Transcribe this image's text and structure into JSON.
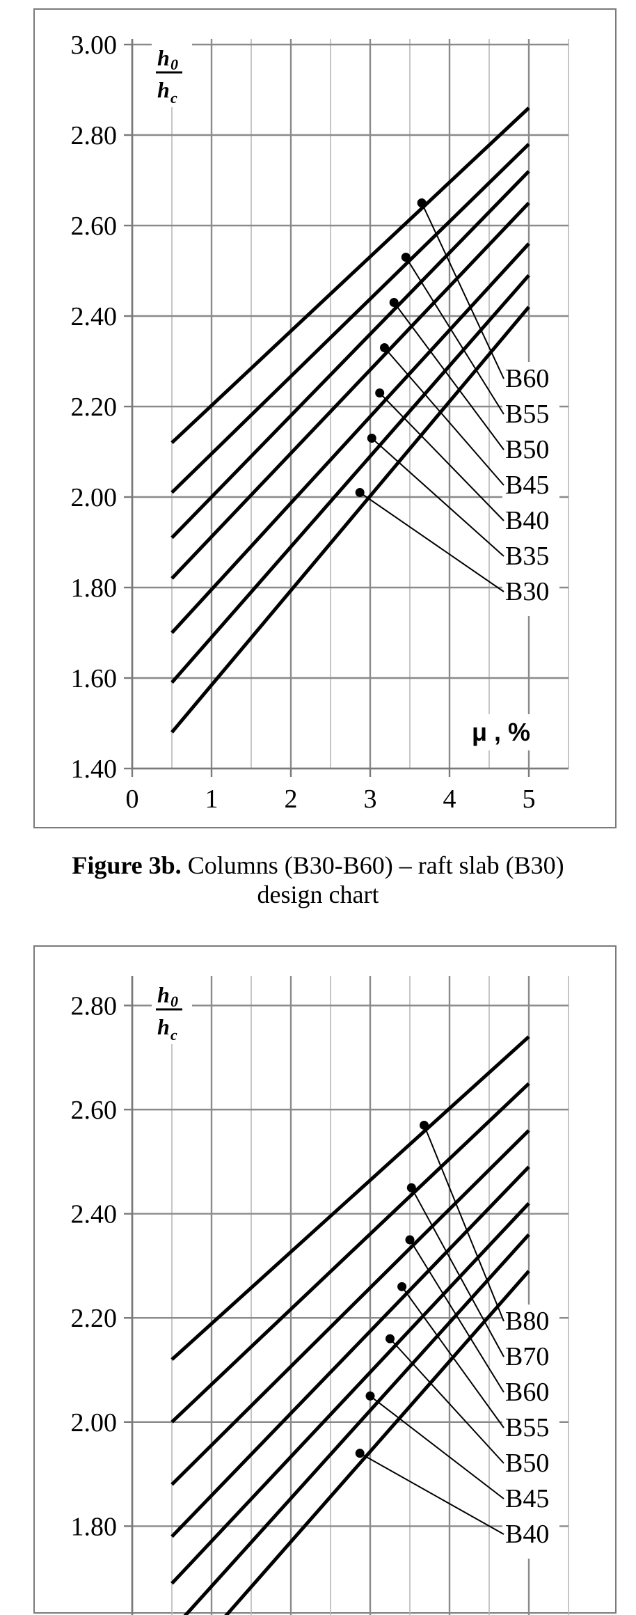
{
  "chart_data": [
    {
      "type": "line",
      "ylabel_num": "h",
      "ylabel_num_sub": "0",
      "ylabel_den": "h",
      "ylabel_den_sub": "c",
      "xlabel": "μ , %",
      "xlim": [
        0,
        5.5
      ],
      "ylim": [
        1.4,
        3.0
      ],
      "xticks": [
        "0",
        "1",
        "2",
        "3",
        "4",
        "5"
      ],
      "yticks": [
        "1.40",
        "1.60",
        "1.80",
        "2.00",
        "2.20",
        "2.40",
        "2.60",
        "2.80",
        "3.00"
      ],
      "grid": true,
      "series": [
        {
          "name": "B60",
          "x": [
            0.5,
            5
          ],
          "y": [
            2.12,
            2.86
          ],
          "marker": [
            3.65,
            2.65
          ]
        },
        {
          "name": "B55",
          "x": [
            0.5,
            5
          ],
          "y": [
            2.01,
            2.78
          ],
          "marker": [
            3.45,
            2.53
          ]
        },
        {
          "name": "B50",
          "x": [
            0.5,
            5
          ],
          "y": [
            1.91,
            2.72
          ],
          "marker": [
            3.3,
            2.43
          ]
        },
        {
          "name": "B45",
          "x": [
            0.5,
            5
          ],
          "y": [
            1.82,
            2.65
          ],
          "marker": [
            3.18,
            2.33
          ]
        },
        {
          "name": "B40",
          "x": [
            0.5,
            5
          ],
          "y": [
            1.7,
            2.56
          ],
          "marker": [
            3.12,
            2.23
          ]
        },
        {
          "name": "B35",
          "x": [
            0.5,
            5
          ],
          "y": [
            1.59,
            2.49
          ],
          "marker": [
            3.02,
            2.13
          ]
        },
        {
          "name": "B30",
          "x": [
            0.5,
            5
          ],
          "y": [
            1.48,
            2.42
          ],
          "marker": [
            2.87,
            2.01
          ]
        }
      ]
    },
    {
      "type": "line",
      "ylabel_num": "h",
      "ylabel_num_sub": "0",
      "ylabel_den": "h",
      "ylabel_den_sub": "c",
      "xlim": [
        0,
        5.5
      ],
      "ylim": [
        1.6,
        2.8
      ],
      "xticks": [],
      "yticks": [
        "1.80",
        "2.00",
        "2.20",
        "2.40",
        "2.60",
        "2.80"
      ],
      "grid": true,
      "series": [
        {
          "name": "B80",
          "x": [
            0.5,
            5
          ],
          "y": [
            2.12,
            2.74
          ],
          "marker": [
            3.68,
            2.57
          ]
        },
        {
          "name": "B70",
          "x": [
            0.5,
            5
          ],
          "y": [
            2.0,
            2.65
          ],
          "marker": [
            3.52,
            2.45
          ]
        },
        {
          "name": "B60",
          "x": [
            0.5,
            5
          ],
          "y": [
            1.88,
            2.56
          ],
          "marker": [
            3.5,
            2.35
          ]
        },
        {
          "name": "B55",
          "x": [
            0.5,
            5
          ],
          "y": [
            1.78,
            2.49
          ],
          "marker": [
            3.4,
            2.26
          ]
        },
        {
          "name": "B50",
          "x": [
            0.5,
            5
          ],
          "y": [
            1.69,
            2.42
          ],
          "marker": [
            3.25,
            2.16
          ]
        },
        {
          "name": "B45",
          "x": [
            0.5,
            5
          ],
          "y": [
            1.6,
            2.36
          ],
          "marker": [
            3.0,
            2.05
          ]
        },
        {
          "name": "B40",
          "x": [
            0.5,
            5
          ],
          "y": [
            1.51,
            2.29
          ],
          "marker": [
            2.87,
            1.94
          ]
        }
      ]
    }
  ],
  "captions": {
    "fig3b_label": "Figure 3b.",
    "fig3b_text": " Columns (B30-B60) – raft slab (B30)",
    "fig3b_line2": "design chart"
  }
}
